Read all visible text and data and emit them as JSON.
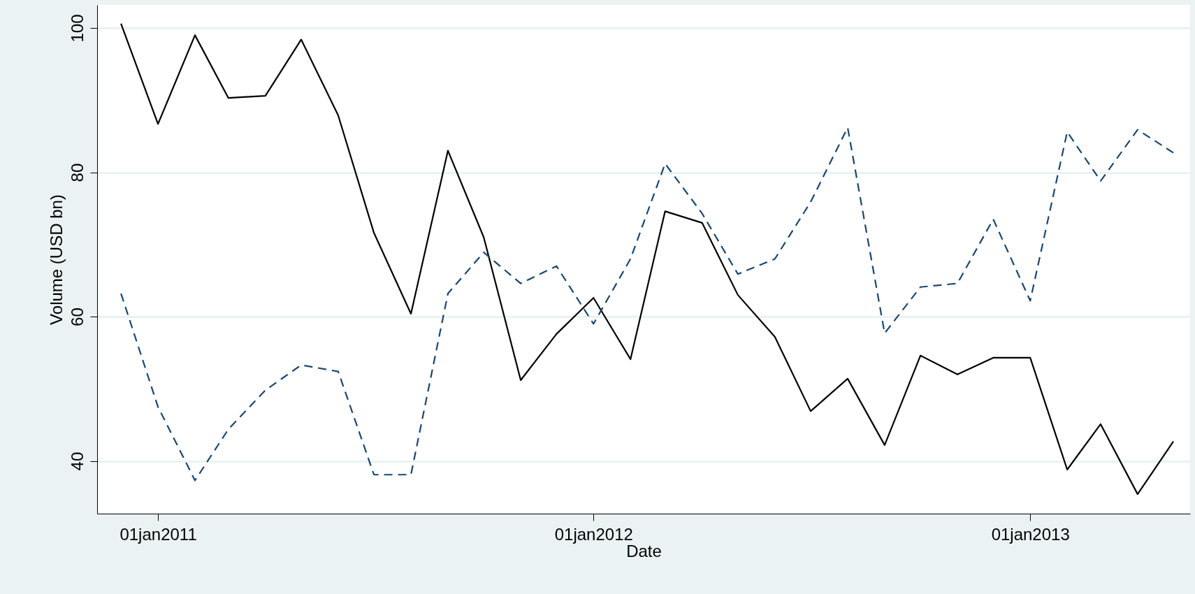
{
  "chart_data": {
    "type": "line",
    "xlabel": "Date",
    "ylabel": "Volume (USD bn)",
    "x": [
      "2010-12-01",
      "2011-01-01",
      "2011-02-01",
      "2011-03-01",
      "2011-04-01",
      "2011-05-01",
      "2011-06-01",
      "2011-07-01",
      "2011-08-01",
      "2011-09-01",
      "2011-10-01",
      "2011-11-01",
      "2011-12-01",
      "2012-01-01",
      "2012-02-01",
      "2012-03-01",
      "2012-04-01",
      "2012-05-01",
      "2012-06-01",
      "2012-07-01",
      "2012-08-01",
      "2012-09-01",
      "2012-10-01",
      "2012-11-01",
      "2012-12-01",
      "2013-01-01",
      "2013-02-01",
      "2013-03-01",
      "2013-04-01",
      "2013-05-01"
    ],
    "series": [
      {
        "color": "#000000",
        "line_style": "solid",
        "values": [
          100.6,
          86.7,
          99,
          90.3,
          90.6,
          98.4,
          87.9,
          71.6,
          60.4,
          83,
          71,
          51.2,
          57.6,
          62.6,
          54.1,
          74.6,
          73,
          63,
          57.2,
          46.9,
          51.4,
          42.2,
          54.6,
          52,
          54.3,
          54.3,
          38.8,
          45.1,
          35.4,
          42.7
        ]
      },
      {
        "color": "#1a476f",
        "line_style": "dashed",
        "values": [
          63.2,
          47.5,
          37.3,
          44.4,
          49.8,
          53.3,
          52.4,
          38.1,
          38.1,
          63.2,
          68.9,
          64.6,
          67,
          59,
          68,
          81.2,
          74.3,
          65.9,
          68,
          75.9,
          86.2,
          57.7,
          64.1,
          64.6,
          73.5,
          62.2,
          85.6,
          78.8,
          85.9,
          82.7
        ]
      }
    ],
    "xlim": [
      "2010-11-11",
      "2013-05-15"
    ],
    "xticks": [
      {
        "value": "2011-01-01",
        "label": "01jan2011"
      },
      {
        "value": "2012-01-01",
        "label": "01jan2012"
      },
      {
        "value": "2013-01-01",
        "label": "01jan2013"
      }
    ],
    "ylim": [
      32.7,
      103.2
    ],
    "yticks": [
      40,
      60,
      80,
      100
    ],
    "grid": "y",
    "marker": "none"
  }
}
